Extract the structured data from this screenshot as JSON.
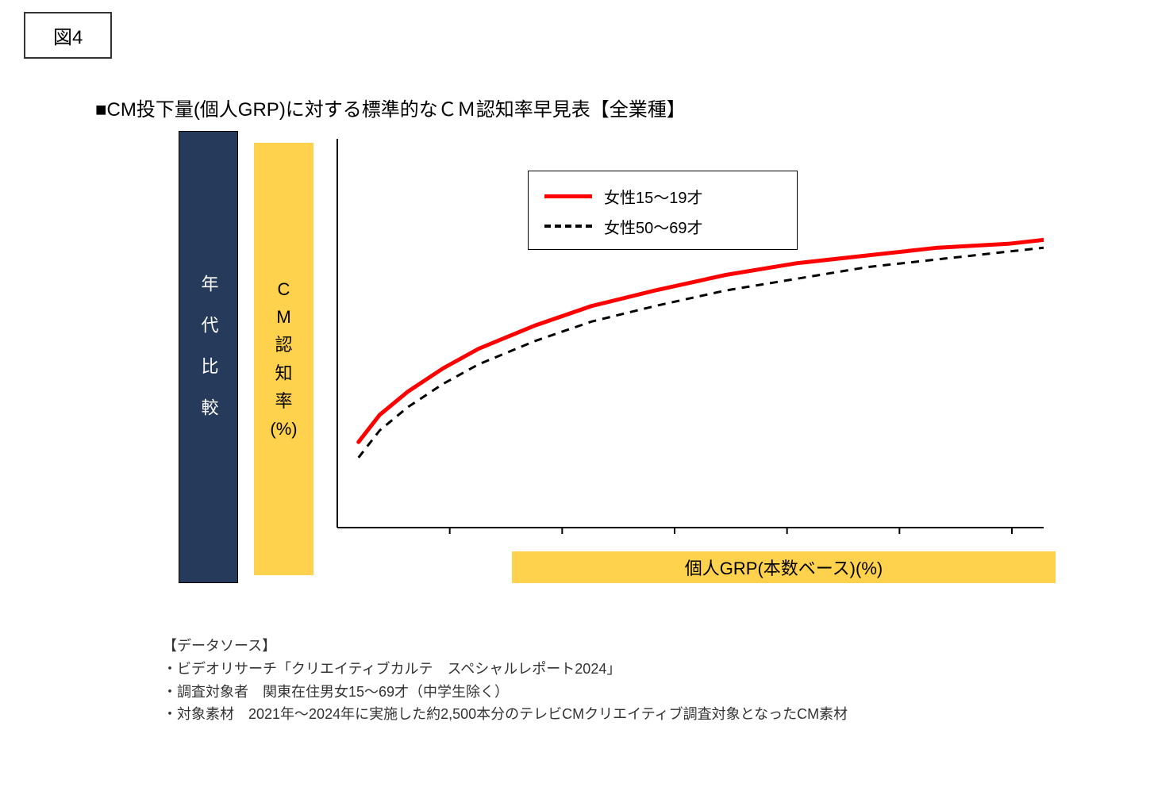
{
  "figure_label": "図4",
  "title": "■CM投下量(個人GRP)に対する標準的なＣＭ認知率早見表【全業種】",
  "side_navy_label": "年代比較",
  "side_yellow_label": [
    "C",
    "M",
    "認",
    "知",
    "率",
    "(%)"
  ],
  "xaxis_label": "個人GRP(本数ベース)(%)",
  "legend": {
    "series1": {
      "label": "女性15～19才",
      "color": "#ff0000",
      "style": "solid",
      "line_width": 5
    },
    "series2": {
      "label": "女性50～69才",
      "color": "#000000",
      "style": "dashed",
      "line_width": 3
    }
  },
  "chart": {
    "type": "line",
    "background_color": "#ffffff",
    "axis_color": "#000000",
    "axis_width": 2,
    "xlim": [
      0,
      100
    ],
    "ylim": [
      0,
      100
    ],
    "x_tick_count": 6,
    "y_tick_count": 0,
    "series1_points": [
      {
        "x": 3,
        "y": 22
      },
      {
        "x": 6,
        "y": 29
      },
      {
        "x": 10,
        "y": 35
      },
      {
        "x": 15,
        "y": 41
      },
      {
        "x": 20,
        "y": 46
      },
      {
        "x": 28,
        "y": 52
      },
      {
        "x": 36,
        "y": 57
      },
      {
        "x": 45,
        "y": 61
      },
      {
        "x": 55,
        "y": 65
      },
      {
        "x": 65,
        "y": 68
      },
      {
        "x": 75,
        "y": 70
      },
      {
        "x": 85,
        "y": 72
      },
      {
        "x": 95,
        "y": 73
      },
      {
        "x": 100,
        "y": 74
      }
    ],
    "series2_points": [
      {
        "x": 3,
        "y": 18
      },
      {
        "x": 6,
        "y": 25
      },
      {
        "x": 10,
        "y": 31
      },
      {
        "x": 15,
        "y": 37
      },
      {
        "x": 20,
        "y": 42
      },
      {
        "x": 28,
        "y": 48
      },
      {
        "x": 36,
        "y": 53
      },
      {
        "x": 45,
        "y": 57
      },
      {
        "x": 55,
        "y": 61
      },
      {
        "x": 65,
        "y": 64
      },
      {
        "x": 75,
        "y": 67
      },
      {
        "x": 85,
        "y": 69
      },
      {
        "x": 95,
        "y": 71
      },
      {
        "x": 100,
        "y": 72
      }
    ]
  },
  "colors": {
    "navy_box": "#263a5b",
    "yellow_box": "#ffd24d",
    "series1": "#ff0000",
    "series2": "#000000",
    "text": "#333333"
  },
  "footnotes": {
    "heading": "【データソース】",
    "line1": "・ビデオリサーチ「クリエイティブカルテ　スペシャルレポート2024」",
    "line2": "・調査対象者　関東在住男女15～69才（中学生除く）",
    "line3": "・対象素材　2021年～2024年に実施した約2,500本分のテレビCMクリエイティブ調査対象となったCM素材"
  }
}
